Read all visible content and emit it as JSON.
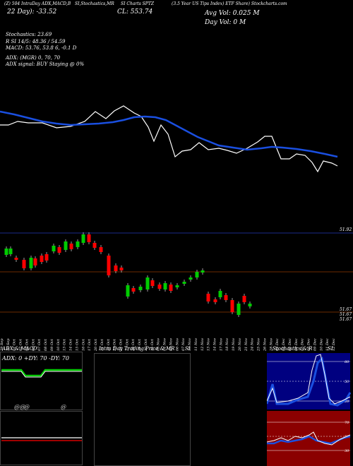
{
  "header": {
    "line1": [
      {
        "text": "(Z) 504 IntraDay ADX,MACD,B",
        "x": 6
      },
      {
        "text": "SI,Stochastics,MR",
        "x": 106
      },
      {
        "text": "SI Charts SPTZ",
        "x": 171
      },
      {
        "text": "(3.5 Year US Tips Index) ETF Share) Stockcharts.com",
        "x": 243
      }
    ],
    "line2_left": "22  Day): -33.52",
    "line2_mid": "CL: 553.74",
    "line2_right": "Avg Vol: 0.025  M",
    "line3_right": "Day Vol: 0   M"
  },
  "indicators": [
    {
      "text": "Stochastics: 23.69"
    },
    {
      "text": "R                    SI 14/5: 48.36 / 54.59"
    },
    {
      "text": "MACD: 53.76, 53.8              6, -0.1 D"
    },
    {
      "text": "ADX:                           (MGR) 0,  70,  70"
    },
    {
      "text": "ADX   signal:                          BUY Staying @ 0%"
    }
  ],
  "price_labels": {
    "top": "51.92",
    "a": "51.67",
    "b": "51.67",
    "c": "51.67"
  },
  "dates": [
    "29 Sep",
    "30 Sep",
    "01 Oct",
    "02 Oct",
    "03 Oct",
    "06 Oct",
    "07 Oct",
    "08 Oct",
    "09 Oct",
    "10 Oct",
    "13 Oct",
    "14 Oct",
    "15 Oct",
    "16 Oct",
    "17 Oct",
    "20 Oct",
    "21 Oct",
    "22 Oct",
    "23 Oct",
    "24 Oct",
    "27 Oct",
    "28 Oct",
    "29 Oct",
    "30 Oct",
    "31 Oct",
    "03 Nov",
    "04 Nov",
    "05 Nov",
    "06 Nov",
    "07 Nov",
    "10 Nov",
    "11 Nov",
    "12 Nov",
    "13 Nov",
    "14 Nov",
    "17 Nov",
    "18 Nov",
    "19 Nov",
    "20 Nov",
    "21 Nov",
    "24 Nov",
    "25 Nov",
    "26 Nov",
    "28 Nov",
    "01 Dec",
    "02 Dec",
    "03 Dec",
    "04 Dec",
    "05 Dec",
    "08 Dec",
    "09 Dec",
    "10 Dec",
    "11 Dec",
    "12 Dec"
  ],
  "panels": {
    "adx": {
      "title": "ADX  & MACD",
      "readout": "ADX: 0   +DY: 70   -DY: 70"
    },
    "intraday": {
      "title": "Intra  Day Trading Price  & MR",
      "title_right": "SI"
    },
    "stoch": {
      "title": "Stochastics & R",
      "title_right": "SI",
      "ticks": [
        "80",
        "50",
        "20"
      ],
      "ticks2": [
        "70",
        "50",
        "30"
      ]
    }
  },
  "colors": {
    "up": "#00cc00",
    "down": "#ff0000",
    "line_blue": "#1a4fe0",
    "white": "#ffffff",
    "rsi_bg": "#8b0000",
    "stoch_bg": "#000080"
  }
}
